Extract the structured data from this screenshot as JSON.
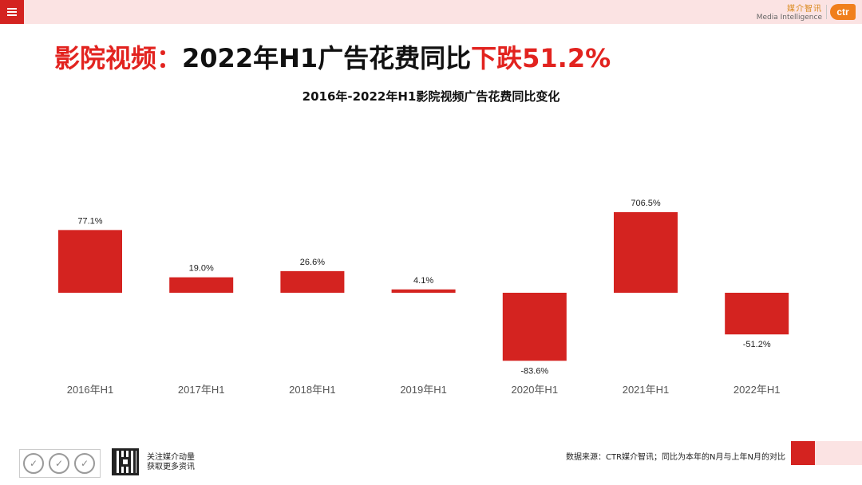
{
  "header": {
    "menu_icon": "hamburger-icon",
    "logo": {
      "cn": "媒介智讯",
      "en": "Media Intelligence",
      "mark": "ctr"
    }
  },
  "headline": {
    "prefix": "影院视频：",
    "middle": "2022年H1广告花费同比",
    "highlight": "下跌51.2%"
  },
  "colors": {
    "accent": "#d42320",
    "headline_red": "#e2231f",
    "bar": "#d42320",
    "topbar": "#fbe3e3"
  },
  "chart_data": {
    "type": "bar",
    "title": "2016年-2022年H1影院视频广告花费同比变化",
    "categories": [
      "2016年H1",
      "2017年H1",
      "2018年H1",
      "2019年H1",
      "2020年H1",
      "2021年H1",
      "2022年H1"
    ],
    "values": [
      77.1,
      19.0,
      26.6,
      4.1,
      -83.6,
      706.5,
      -51.2
    ],
    "labels": [
      "77.1%",
      "19.0%",
      "26.6%",
      "4.1%",
      "-83.6%",
      "706.5%",
      "-51.2%"
    ],
    "unit": "%",
    "axis_break": true,
    "grid": false,
    "legend": "none"
  },
  "footer": {
    "follow_line1": "关注媒介动量",
    "follow_line2": "获取更多资讯",
    "source": "数据来源：CTR媒介智讯；同比为本年的N月与上年N月的对比"
  }
}
